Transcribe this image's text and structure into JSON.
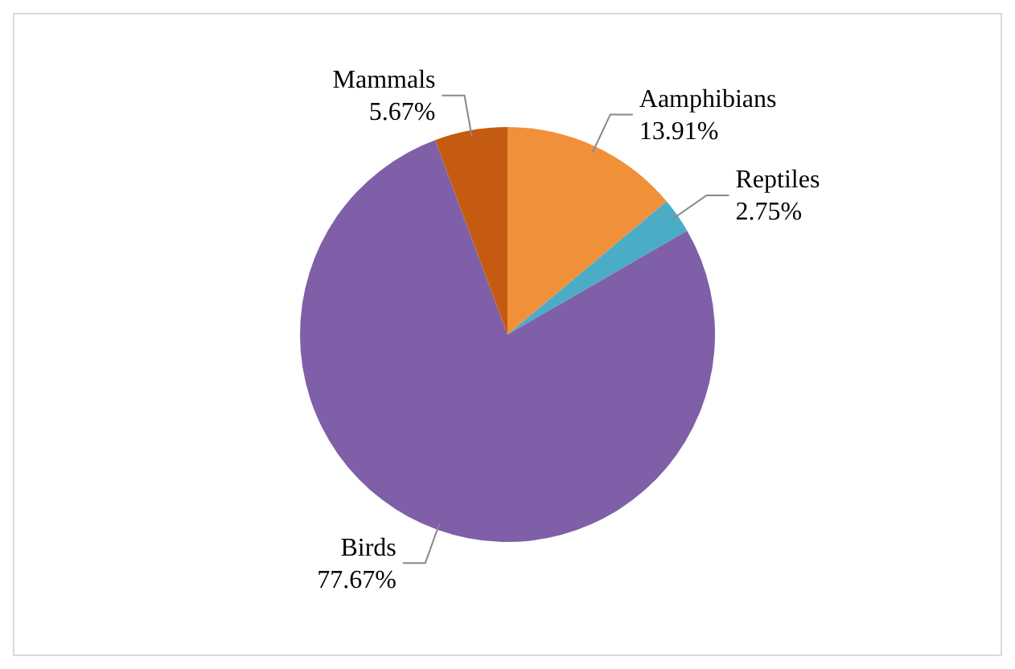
{
  "chart_data": {
    "type": "pie",
    "categories": [
      "Aamphibians",
      "Reptiles",
      "Birds",
      "Mammals"
    ],
    "values": [
      13.91,
      2.75,
      77.67,
      5.67
    ],
    "colors": [
      "#f0913a",
      "#4bacc6",
      "#7f5fa8",
      "#c55a11"
    ],
    "value_labels": [
      "13.91%",
      "2.75%",
      "77.67%",
      "5.67%"
    ],
    "legend": false
  }
}
